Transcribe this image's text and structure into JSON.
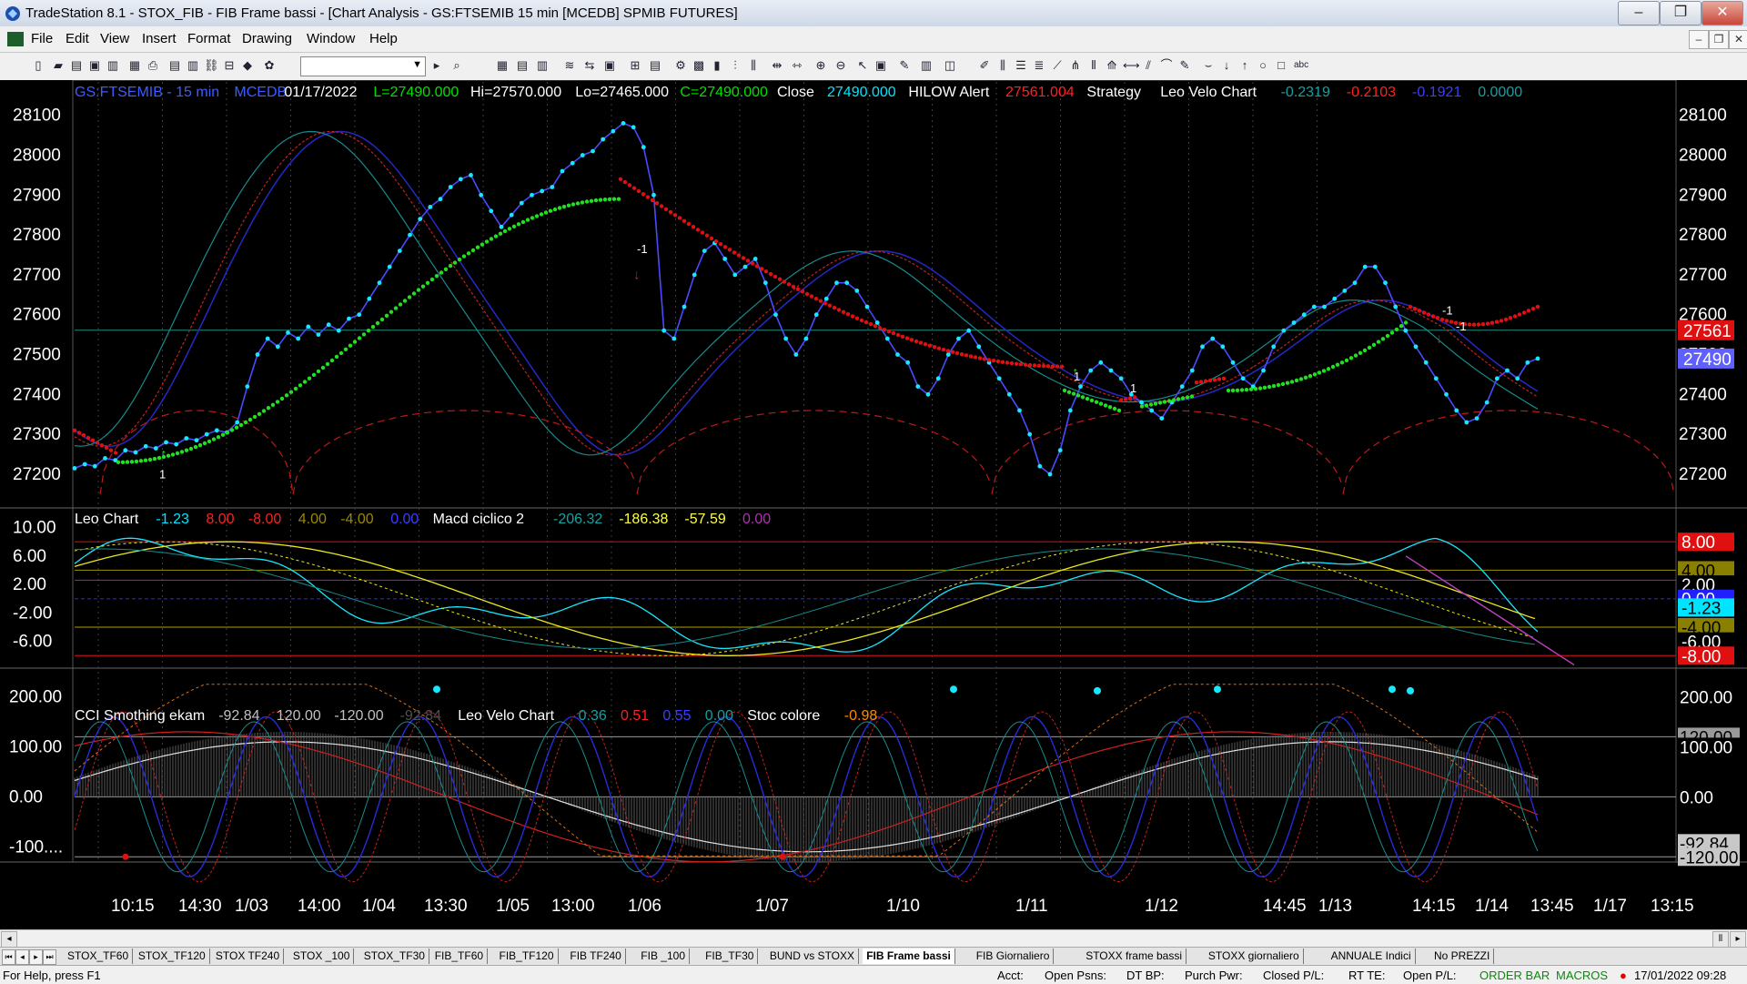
{
  "window": {
    "title": "TradeStation 8.1 - STOX_FIB - FIB Frame bassi - [Chart Analysis - GS:FTSEMIB  15 min  [MCEDB] SPMIB FUTURES]"
  },
  "menu": {
    "items": [
      "File",
      "Edit",
      "View",
      "Insert",
      "Format",
      "Drawing",
      "Window",
      "Help"
    ]
  },
  "toolbar": {
    "combo_value": ""
  },
  "panel1": {
    "header": [
      {
        "text": "GS:FTSEMIB - 15 min",
        "color": "#3d5cff"
      },
      {
        "text": "MCEDB",
        "color": "#3d5cff"
      },
      {
        "text": "01/17/2022",
        "color": "#ffffff"
      },
      {
        "text": "L=27490.000",
        "color": "#00e000"
      },
      {
        "text": "Hi=27570.000",
        "color": "#ffffff"
      },
      {
        "text": "Lo=27465.000",
        "color": "#ffffff"
      },
      {
        "text": "C=27490.000",
        "color": "#00e000"
      },
      {
        "text": "Close",
        "color": "#ffffff"
      },
      {
        "text": "27490.000",
        "color": "#00e5ff"
      },
      {
        "text": "HILOW Alert",
        "color": "#ffffff"
      },
      {
        "text": "27561.004",
        "color": "#ff2020"
      },
      {
        "text": "Strategy",
        "color": "#ffffff"
      },
      {
        "text": "Leo Velo Chart",
        "color": "#ffffff"
      },
      {
        "text": "-0.2319",
        "color": "#16a0a0"
      },
      {
        "text": "-0.2103",
        "color": "#ff2020"
      },
      {
        "text": "-0.1921",
        "color": "#3d3dff"
      },
      {
        "text": "0.0000",
        "color": "#16a0a0"
      }
    ],
    "axis_labels": [
      "28100",
      "28000",
      "27900",
      "27800",
      "27700",
      "27600",
      "27500",
      "27400",
      "27300",
      "27200"
    ],
    "price_tags": [
      {
        "text": "27561",
        "bg": "#e01010",
        "fg": "#ffffff"
      },
      {
        "text": "27490",
        "bg": "#6060ff",
        "fg": "#ffffff"
      }
    ],
    "annotations": [
      "-1",
      "1",
      "-1",
      "1",
      "-1",
      "1"
    ]
  },
  "panel2": {
    "header": [
      {
        "text": "Leo Chart",
        "color": "#ffffff"
      },
      {
        "text": "-1.23",
        "color": "#00e5ff"
      },
      {
        "text": "8.00",
        "color": "#ff2020"
      },
      {
        "text": "-8.00",
        "color": "#ff2020"
      },
      {
        "text": "4.00",
        "color": "#9a8a00"
      },
      {
        "text": "-4.00",
        "color": "#9a8a00"
      },
      {
        "text": "0.00",
        "color": "#3d3dff"
      },
      {
        "text": "Macd ciclico 2",
        "color": "#ffffff"
      },
      {
        "text": "-206.32",
        "color": "#16a0a0"
      },
      {
        "text": "-186.38",
        "color": "#ffff40"
      },
      {
        "text": "-57.59",
        "color": "#ffff40"
      },
      {
        "text": "0.00",
        "color": "#b030b0"
      }
    ],
    "axis_labels": [
      "10.00",
      "6.00",
      "2.00",
      "-2.00",
      "-6.00"
    ],
    "tags": [
      {
        "text": "8.00",
        "bg": "#e01010",
        "fg": "#ffffff"
      },
      {
        "text": "4.00",
        "bg": "#8a8000",
        "fg": "#000000"
      },
      {
        "text": "2.00",
        "bg": "#000000",
        "fg": "#ffffff"
      },
      {
        "text": "0.00",
        "bg": "#2020ff",
        "fg": "#ffffff"
      },
      {
        "text": "-1.23",
        "bg": "#00e5ff",
        "fg": "#000000"
      },
      {
        "text": "-4.00",
        "bg": "#8a8000",
        "fg": "#000000"
      },
      {
        "text": "-6.00",
        "bg": "#000000",
        "fg": "#ffffff"
      },
      {
        "text": "-8.00",
        "bg": "#e01010",
        "fg": "#ffffff"
      }
    ]
  },
  "panel3": {
    "header": [
      {
        "text": "CCI Smothing ekam",
        "color": "#ffffff"
      },
      {
        "text": "-92.84",
        "color": "#c0c0c0"
      },
      {
        "text": "120.00",
        "color": "#c0c0c0"
      },
      {
        "text": "-120.00",
        "color": "#c0c0c0"
      },
      {
        "text": "-92.84",
        "color": "#505050"
      },
      {
        "text": "Leo Velo Chart",
        "color": "#ffffff"
      },
      {
        "text": "0.36",
        "color": "#16a0a0"
      },
      {
        "text": "0.51",
        "color": "#ff2020"
      },
      {
        "text": "0.55",
        "color": "#3d3dff"
      },
      {
        "text": "0.00",
        "color": "#16a0a0"
      },
      {
        "text": "Stoc colore",
        "color": "#ffffff"
      },
      {
        "text": "-0.98",
        "color": "#ff8c00"
      }
    ],
    "axis_labels": [
      "200.00",
      "100.00",
      "0.00",
      "-100...."
    ],
    "tags": [
      {
        "text": "120.00",
        "bg": "#9a9a9a",
        "fg": "#000000"
      },
      {
        "text": "100.00",
        "bg": "#000000",
        "fg": "#ffffff"
      },
      {
        "text": "0.00",
        "bg": "#000000",
        "fg": "#ffffff"
      },
      {
        "text": "200.00",
        "bg": "#000000",
        "fg": "#ffffff"
      },
      {
        "text": "-92.84",
        "bg": "#c8c8c8",
        "fg": "#000000"
      },
      {
        "text": "-120.00",
        "bg": "#c8c8c8",
        "fg": "#000000"
      }
    ]
  },
  "time_axis": [
    "10:15",
    "14:30",
    "1/03",
    "14:00",
    "1/04",
    "13:30",
    "1/05",
    "13:00",
    "1/06",
    "1/07",
    "1/10",
    "1/11",
    "1/12",
    "14:45",
    "1/13",
    "14:15",
    "1/14",
    "13:45",
    "1/17",
    "13:15"
  ],
  "tabs": [
    "STOX_TF60",
    "STOX_TF120",
    "STOX TF240",
    "STOX _100",
    "STOX_TF30",
    "FIB_TF60",
    "FIB_TF120",
    "FIB TF240",
    "FIB _100",
    "FIB_TF30",
    "BUND vs STOXX",
    "FIB Frame bassi",
    "FIB Giornaliero",
    "STOXX frame bassi",
    "STOXX giornaliero",
    "ANNUALE Indici",
    "No PREZZI"
  ],
  "active_tab": "FIB Frame bassi",
  "status": {
    "help": "For Help, press F1",
    "fields": [
      "Acct:",
      "Open Psns:",
      "DT BP:",
      "Purch Pwr:",
      "Closed P/L:",
      "RT TE:",
      "Open P/L:"
    ],
    "order_bar": "ORDER BAR",
    "macros": "MACROS",
    "datetime": "17/01/2022 09:28"
  },
  "chart_data": {
    "type": "line",
    "title": "GS:FTSEMIB - 15 min",
    "price_range": [
      27120,
      28170
    ],
    "price_series": [
      27215,
      27225,
      27220,
      27240,
      27235,
      27260,
      27255,
      27270,
      27265,
      27280,
      27275,
      27290,
      27285,
      27300,
      27310,
      27305,
      27330,
      27420,
      27500,
      27540,
      27520,
      27555,
      27540,
      27570,
      27550,
      27575,
      27560,
      27590,
      27600,
      27640,
      27680,
      27720,
      27760,
      27800,
      27840,
      27870,
      27890,
      27920,
      27940,
      27950,
      27900,
      27860,
      27820,
      27850,
      27880,
      27900,
      27910,
      27920,
      27960,
      27980,
      28000,
      28010,
      28040,
      28060,
      28080,
      28070,
      28020,
      27900,
      27560,
      27540,
      27620,
      27700,
      27760,
      27780,
      27740,
      27700,
      27720,
      27740,
      27680,
      27600,
      27540,
      27500,
      27540,
      27600,
      27640,
      27680,
      27680,
      27660,
      27620,
      27580,
      27540,
      27500,
      27480,
      27420,
      27400,
      27440,
      27500,
      27540,
      27560,
      27520,
      27480,
      27440,
      27400,
      27360,
      27300,
      27220,
      27200,
      27260,
      27360,
      27420,
      27460,
      27480,
      27460,
      27440,
      27400,
      27380,
      27360,
      27340,
      27380,
      27420,
      27460,
      27520,
      27540,
      27520,
      27480,
      27440,
      27420,
      27460,
      27520,
      27560,
      27580,
      27600,
      27620,
      27620,
      27640,
      27660,
      27680,
      27720,
      27720,
      27680,
      27620,
      27560,
      27520,
      27480,
      27440,
      27400,
      27360,
      27330,
      27340,
      27380,
      27440,
      27460,
      27440,
      27480,
      27490
    ],
    "hilow_alert": 27561.004,
    "last_close": 27490.0,
    "leo_chart_range": [
      -9.5,
      12.5
    ],
    "leo_chart_levels": [
      8,
      4,
      0,
      -4,
      -8
    ],
    "leo_chart_last": -1.23,
    "cci_range": [
      -125,
      250
    ],
    "cci_levels": [
      120,
      0,
      -120
    ],
    "cci_last": -92.84
  }
}
